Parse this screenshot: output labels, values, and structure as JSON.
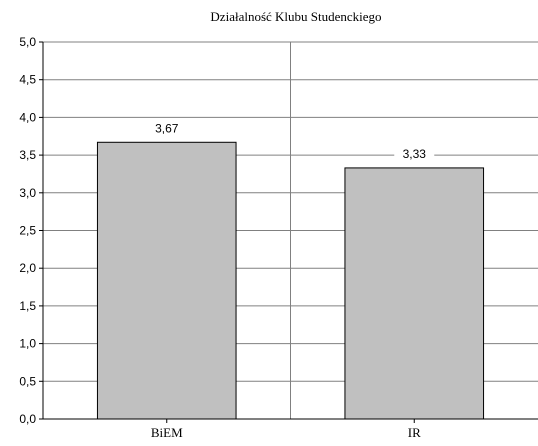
{
  "chart_data": {
    "type": "bar",
    "title": "Działalność Klubu Studenckiego",
    "categories": [
      "BiEM",
      "IR"
    ],
    "values": [
      3.67,
      3.33
    ],
    "value_labels": [
      "3,67",
      "3,33"
    ],
    "ylim": [
      0,
      5
    ],
    "yticks": [
      0,
      0.5,
      1,
      1.5,
      2,
      2.5,
      3,
      3.5,
      4,
      4.5,
      5
    ],
    "ytick_labels": [
      "0,0",
      "0,5",
      "1,0",
      "1,5",
      "2,0",
      "2,5",
      "3,0",
      "3,5",
      "4,0",
      "4,5",
      "5,0"
    ],
    "xlabel": "",
    "ylabel": "",
    "grid": true,
    "legend": "none",
    "colors": {
      "bar_fill": "#c0c0c0",
      "bar_stroke": "#000000",
      "grid": "#808080",
      "axis": "#000000"
    }
  }
}
